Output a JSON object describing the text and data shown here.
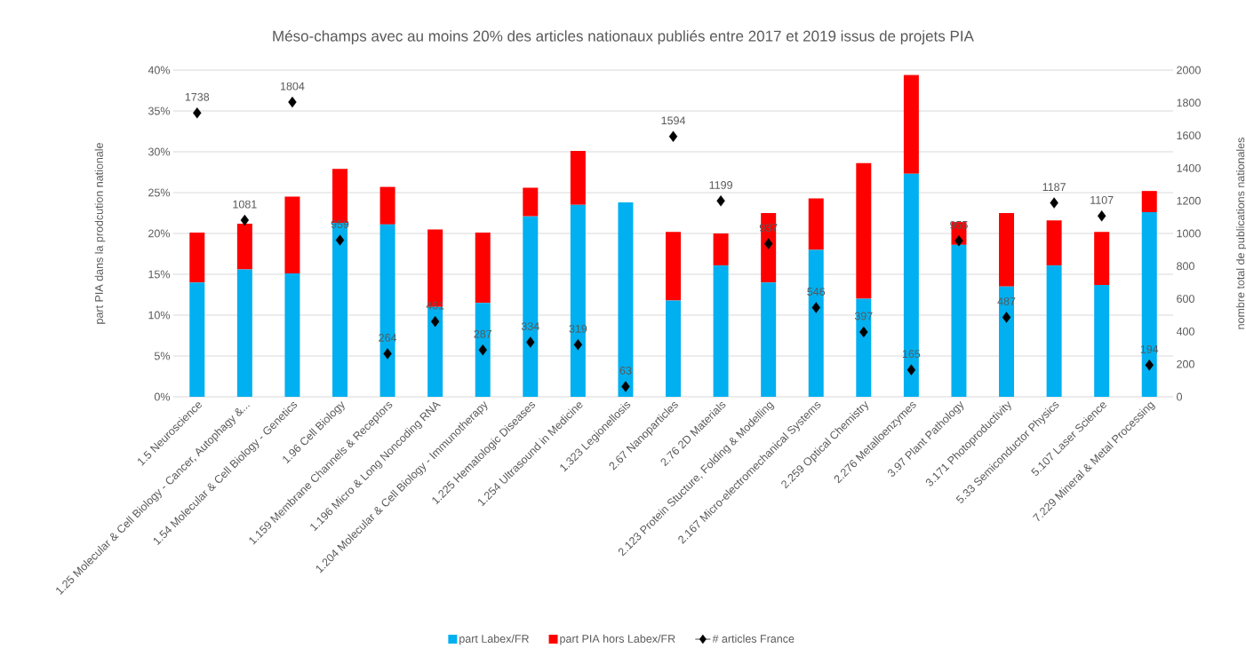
{
  "chart_data": {
    "type": "bar",
    "title": "Méso-champs avec au moins 20% des articles nationaux publiés entre 2017 et 2019 issus de projets PIA",
    "ylabel": "part PIA dans la prodcution nationale",
    "y2label": "nombre total de publications nationales",
    "categories": [
      "1.5 Neuroscience",
      "1.25 Molecular & Cell Biology - Cancer, Autophagy &...",
      "1.54 Molecular & Cell Biology - Genetics",
      "1.96 Cell Biology",
      "1.159 Membrane Channels & Receptors",
      "1.196 Micro & Long Noncoding RNA",
      "1.204 Molecular & Cell Biology - Immunotherapy",
      "1.225 Hematologic Diseases",
      "1.254 Ultrasound in Medicine",
      "1.323 Legionellosis",
      "2.67 Nanoparticles",
      "2.76 2D Materials",
      "2.123 Protein Stucture, Folding & Modelling",
      "2.167 Micro-electromechanical Systems",
      "2.259 Optical Chemistry",
      "2.276 Metalloenzymes",
      "3.97 Plant Pathology",
      "3.171 Photoproductivity",
      "5.33 Semiconductor Physics",
      "5.107 Laser Science",
      "7.229 Mineral & Metal Processing"
    ],
    "stacked": true,
    "series": [
      {
        "name": "part Labex/FR",
        "color": "#00b0f0",
        "values": [
          14.0,
          15.6,
          15.1,
          21.3,
          21.1,
          11.0,
          11.5,
          22.1,
          23.5,
          23.8,
          11.8,
          16.1,
          14.0,
          18.0,
          12.0,
          27.3,
          18.6,
          13.5,
          16.1,
          13.7,
          22.6
        ]
      },
      {
        "name": "part PIA hors Labex/FR",
        "color": "#ff0000",
        "values": [
          6.1,
          5.6,
          9.4,
          6.6,
          4.6,
          9.5,
          8.6,
          3.5,
          6.6,
          0,
          8.4,
          3.9,
          8.5,
          6.3,
          16.6,
          12.1,
          2.8,
          9.0,
          5.5,
          6.5,
          2.6
        ]
      },
      {
        "name": "# articles France",
        "type": "scatter",
        "axis": "y2",
        "marker": "diamond",
        "data_labels": true,
        "color": "#000000",
        "values": [
          1738,
          1081,
          1804,
          959,
          264,
          461,
          287,
          334,
          319,
          63,
          1594,
          1199,
          937,
          546,
          397,
          165,
          955,
          487,
          1187,
          1107,
          194
        ]
      }
    ],
    "ylim": [
      0,
      40
    ],
    "yticks": [
      {
        "value": 0,
        "label": "0%"
      },
      {
        "value": 5,
        "label": "5%"
      },
      {
        "value": 10,
        "label": "10%"
      },
      {
        "value": 15,
        "label": "15%"
      },
      {
        "value": 20,
        "label": "20%"
      },
      {
        "value": 25,
        "label": "25%"
      },
      {
        "value": 30,
        "label": "30%"
      },
      {
        "value": 35,
        "label": "35%"
      },
      {
        "value": 40,
        "label": "40%"
      }
    ],
    "y2lim": [
      0,
      2000
    ],
    "y2ticks": [
      0,
      200,
      400,
      600,
      800,
      1000,
      1200,
      1400,
      1600,
      1800,
      2000
    ],
    "grid": "y",
    "legend": "bottom"
  }
}
